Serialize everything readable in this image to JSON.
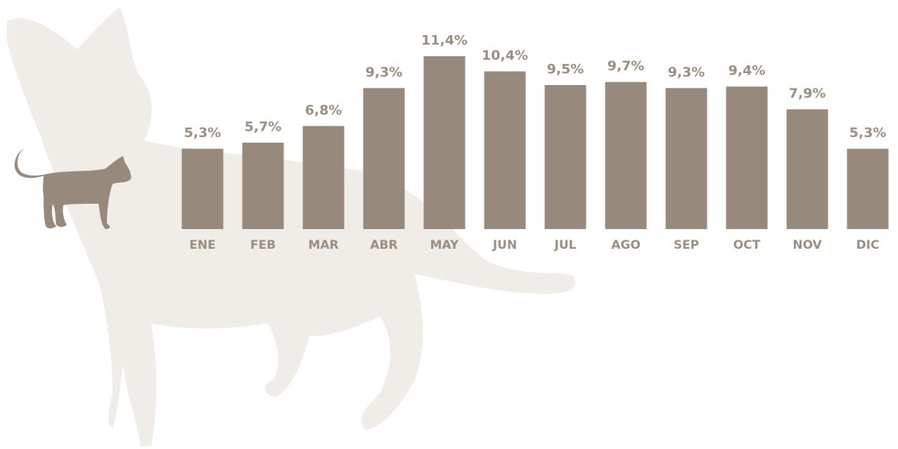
{
  "chart_data": {
    "type": "bar",
    "categories": [
      "ENE",
      "FEB",
      "MAR",
      "ABR",
      "MAY",
      "JUN",
      "JUL",
      "AGO",
      "SEP",
      "OCT",
      "NOV",
      "DIC"
    ],
    "values": [
      5.3,
      5.7,
      6.8,
      9.3,
      11.4,
      10.4,
      9.5,
      9.7,
      9.3,
      9.4,
      7.9,
      5.3
    ],
    "value_labels": [
      "5,3%",
      "5,7%",
      "6,8%",
      "9,3%",
      "11,4%",
      "10,4%",
      "9,5%",
      "9,7%",
      "9,3%",
      "9,4%",
      "7,9%",
      "5,3%"
    ],
    "color": "#978a7c"
  }
}
